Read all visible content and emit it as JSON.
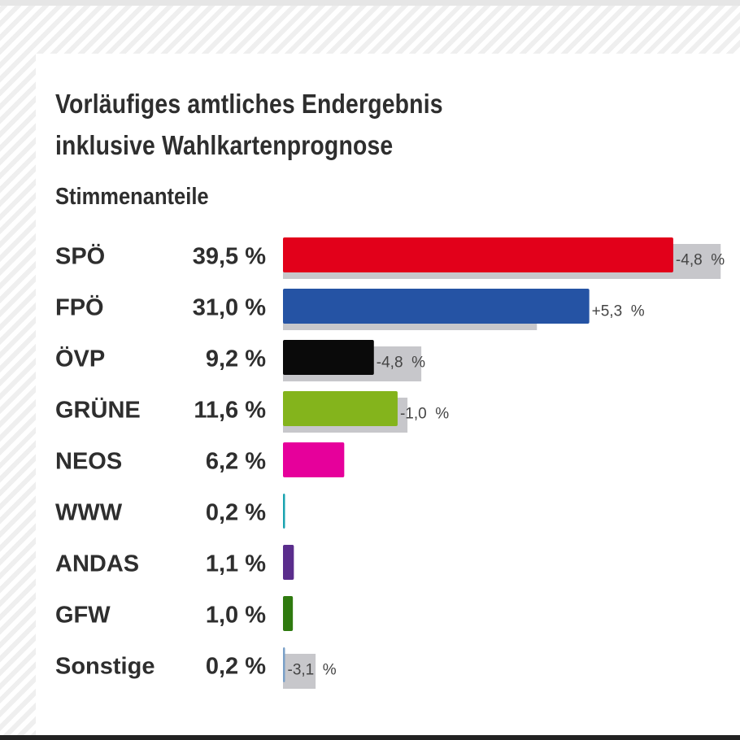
{
  "header": {
    "title_line1": "Vorläufiges amtliches Endergebnis",
    "title_line2": "inklusive Wahlkartenprognose",
    "subtitle": "Stimmenanteile"
  },
  "chart_data": {
    "type": "bar",
    "orientation": "horizontal",
    "categories": [
      "SPÖ",
      "FPÖ",
      "ÖVP",
      "GRÜNE",
      "NEOS",
      "WWW",
      "ANDAS",
      "GFW",
      "Sonstige"
    ],
    "value_labels": [
      "39,5 %",
      "31,0 %",
      "9,2 %",
      "11,6 %",
      "6,2 %",
      "0,2 %",
      "1,1 %",
      "1,0 %",
      "0,2 %"
    ],
    "series": [
      {
        "values": [
          39.5,
          31.0,
          9.2,
          11.6,
          6.2,
          0.2,
          1.1,
          1.0,
          0.2
        ]
      },
      {
        "values": [
          44.3,
          25.7,
          14.0,
          12.6,
          null,
          null,
          null,
          null,
          3.3
        ]
      }
    ],
    "change_labels": [
      "-4,8  %",
      "+5,3  %",
      "-4,8  %",
      "-1,0  %",
      "",
      "",
      "",
      "",
      "-3,1  %"
    ],
    "colors": [
      "#e2001a",
      "#2553a4",
      "#0a0a0a",
      "#84b41c",
      "#e6009b",
      "#1aa3b0",
      "#5a2d8c",
      "#2f7a0f",
      "#7aa0c8"
    ],
    "previous_color": "#c7c7cb",
    "xlim": [
      0,
      46
    ],
    "grid": false,
    "legend": "none"
  }
}
